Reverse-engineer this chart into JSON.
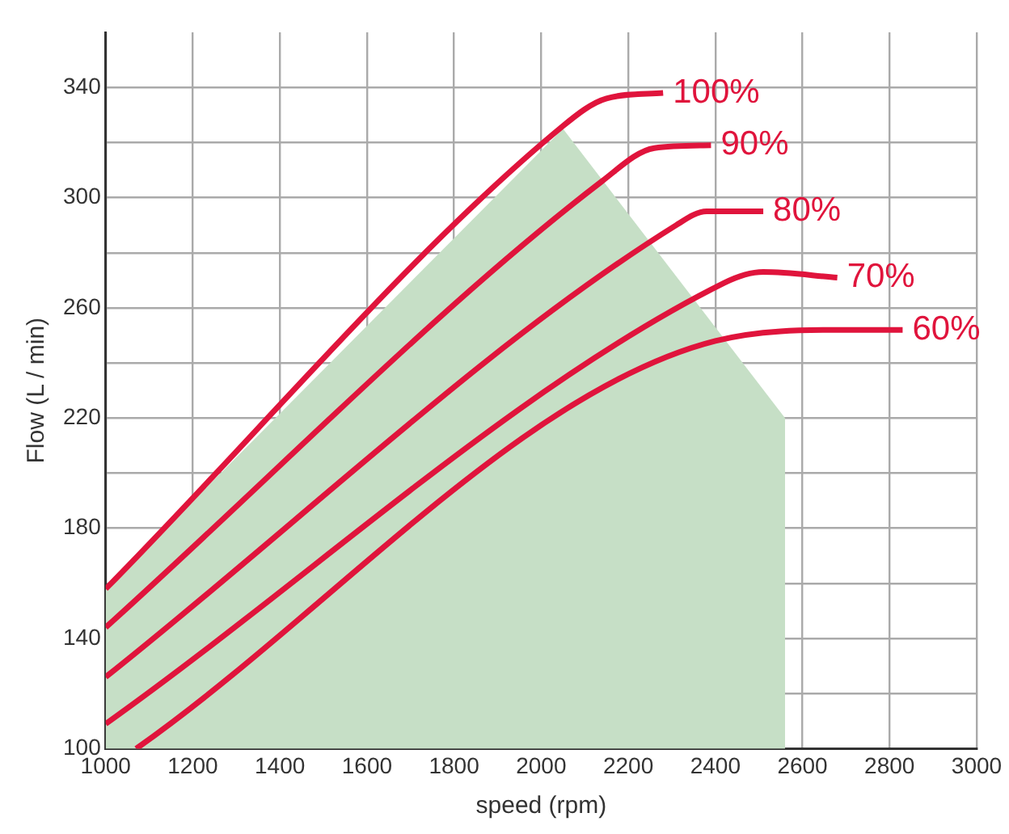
{
  "chart_data": {
    "type": "line",
    "xlabel": "speed (rpm)",
    "ylabel": "Flow (L / min)",
    "xlim": [
      1000,
      3000
    ],
    "xticks": [
      1000,
      1200,
      1400,
      1600,
      1800,
      2000,
      2200,
      2400,
      2600,
      2800,
      3000
    ],
    "ylim": [
      100,
      360
    ],
    "yticks": [
      100,
      {
        "value": 120,
        "label": null
      },
      140,
      {
        "value": 160,
        "label": null
      },
      180,
      {
        "value": 200,
        "label": null
      },
      220,
      {
        "value": 240,
        "label": null
      },
      260,
      {
        "value": 280,
        "label": null
      },
      300,
      {
        "value": 320,
        "label": null
      },
      340
    ],
    "grid": true,
    "legend": false,
    "marker": "none",
    "line_style": "solid",
    "series": [
      {
        "type": "area",
        "color": "#c6dfc6",
        "x": [
          1000,
          2050,
          2560,
          2560
        ],
        "values": [
          158,
          325,
          220,
          100
        ]
      },
      {
        "name": "100%",
        "color": "#e0143c",
        "x": [
          1000,
          2050,
          2150,
          2280
        ],
        "values": [
          158,
          326,
          336,
          338
        ]
      },
      {
        "name": "90%",
        "color": "#e0143c",
        "x": [
          1000,
          2140,
          2260,
          2390
        ],
        "values": [
          144,
          306,
          318,
          319
        ]
      },
      {
        "name": "80%",
        "color": "#e0143c",
        "x": [
          1000,
          2310,
          2380,
          2510
        ],
        "values": [
          126,
          290,
          295,
          295
        ]
      },
      {
        "name": "70%",
        "color": "#e0143c",
        "x": [
          1000,
          2420,
          2510,
          2680
        ],
        "values": [
          109,
          269,
          273,
          271
        ]
      },
      {
        "name": "60%",
        "color": "#e0143c",
        "x": [
          1070,
          2400,
          2700,
          2830
        ],
        "values": [
          100,
          248,
          252,
          252
        ]
      }
    ]
  }
}
